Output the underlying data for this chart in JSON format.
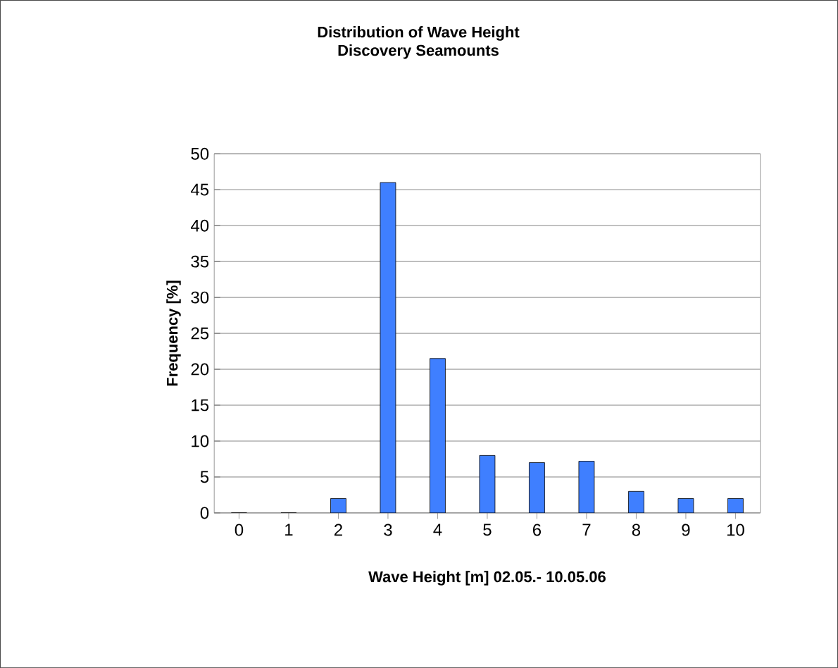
{
  "chart_data": {
    "type": "bar",
    "title": "Distribution of Wave Height\nDiscovery Seamounts",
    "xlabel": "Wave Height [m] 02.05.- 10.05.06",
    "ylabel": "Frequency [%]",
    "categories": [
      "0",
      "1",
      "2",
      "3",
      "4",
      "5",
      "6",
      "7",
      "8",
      "9",
      "10"
    ],
    "values": [
      0,
      0,
      2,
      46,
      21.5,
      8,
      7,
      7.2,
      3,
      2,
      2
    ],
    "color": "#3f7fff",
    "ylim": [
      0,
      50
    ],
    "yticks": [
      0,
      5,
      10,
      15,
      20,
      25,
      30,
      35,
      40,
      45,
      50
    ],
    "grid": "y"
  }
}
